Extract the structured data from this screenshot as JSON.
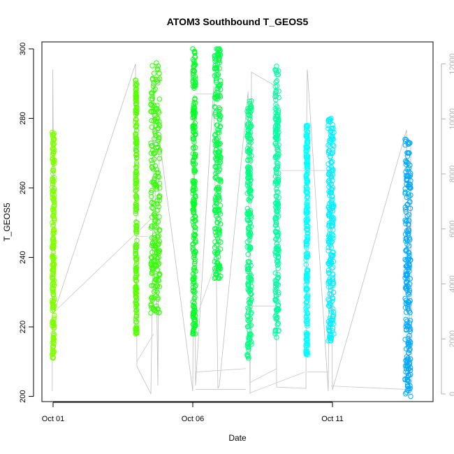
{
  "chart_data": {
    "type": "scatter",
    "title": "ATOM3 Southbound T_GEOS5",
    "xlabel": "Date",
    "ylabel": "T_GEOS5",
    "x_ticks": [
      "Oct 01",
      "Oct 06",
      "Oct 11"
    ],
    "x_tick_values": [
      1.0,
      6.0,
      11.0
    ],
    "xlim": [
      0.6,
      14.6
    ],
    "ylim": [
      198.5,
      302
    ],
    "y_ticks": [
      200,
      220,
      240,
      260,
      280,
      300
    ],
    "y2_ticks": [
      0,
      2000,
      4000,
      6000,
      8000,
      10000,
      12000
    ],
    "y2lim": [
      -280,
      12800
    ],
    "grid": false,
    "series": [
      {
        "values": [
          [
            0.97,
            212
          ],
          [
            0.97,
            276
          ],
          [
            1.0,
            211
          ],
          [
            1.0,
            270
          ],
          [
            1.02,
            252
          ],
          [
            1.02,
            230
          ],
          [
            1.05,
            268
          ],
          [
            1.05,
            240
          ]
        ],
        "color": "#7fff00"
      },
      {
        "values": [
          [
            3.95,
            218
          ],
          [
            3.95,
            291
          ],
          [
            4.0,
            250
          ],
          [
            4.0,
            264
          ],
          [
            4.0,
            235
          ]
        ],
        "color": "#55ff00"
      },
      {
        "values": [
          [
            4.5,
            224
          ],
          [
            4.5,
            282
          ],
          [
            4.6,
            225
          ],
          [
            4.6,
            288
          ],
          [
            4.7,
            226
          ],
          [
            4.7,
            296
          ],
          [
            4.75,
            228
          ],
          [
            4.75,
            294
          ],
          [
            4.78,
            240
          ],
          [
            4.82,
            260
          ]
        ],
        "color": "#33ff00"
      },
      {
        "values": [
          [
            6.0,
            218
          ],
          [
            6.0,
            300
          ],
          [
            6.05,
            222
          ],
          [
            6.05,
            296
          ],
          [
            6.1,
            232
          ],
          [
            6.1,
            290
          ],
          [
            6.02,
            260
          ]
        ],
        "color": "#00ff22"
      },
      {
        "values": [
          [
            6.78,
            234
          ],
          [
            6.78,
            298
          ],
          [
            6.85,
            235
          ],
          [
            6.85,
            300
          ],
          [
            6.95,
            234
          ],
          [
            6.95,
            300
          ],
          [
            7.0,
            262
          ]
        ],
        "color": "#00ff44"
      },
      {
        "values": [
          [
            7.95,
            212
          ],
          [
            7.95,
            282
          ],
          [
            8.0,
            211
          ],
          [
            8.0,
            280
          ],
          [
            8.1,
            215
          ],
          [
            8.1,
            285
          ],
          [
            8.05,
            250
          ]
        ],
        "color": "#00ff80"
      },
      {
        "values": [
          [
            8.95,
            218
          ],
          [
            8.95,
            294
          ],
          [
            9.0,
            217
          ],
          [
            9.0,
            295
          ],
          [
            9.08,
            219
          ],
          [
            9.08,
            286
          ],
          [
            9.02,
            255
          ]
        ],
        "color": "#00ffa0"
      },
      {
        "values": [
          [
            10.05,
            213
          ],
          [
            10.05,
            272
          ],
          [
            10.12,
            212
          ],
          [
            10.12,
            278
          ],
          [
            10.08,
            240
          ]
        ],
        "color": "#00ffff"
      },
      {
        "values": [
          [
            10.85,
            216
          ],
          [
            10.85,
            278
          ],
          [
            10.95,
            216
          ],
          [
            10.95,
            280
          ],
          [
            11.05,
            218
          ],
          [
            11.05,
            276
          ],
          [
            10.98,
            240
          ]
        ],
        "color": "#00f0ff"
      },
      {
        "values": [
          [
            13.6,
            205
          ],
          [
            13.6,
            274
          ],
          [
            13.7,
            203
          ],
          [
            13.7,
            270
          ],
          [
            13.8,
            200
          ],
          [
            13.8,
            260
          ],
          [
            13.75,
            230
          ]
        ],
        "color": "#00a8ff"
      }
    ],
    "altitude_series": {
      "color": "#bdbdbd",
      "values": [
        [
          0.97,
          100
        ],
        [
          0.99,
          11800
        ],
        [
          1.01,
          8700
        ],
        [
          1.05,
          3000
        ],
        [
          3.95,
          12000
        ],
        [
          4.0,
          1000
        ],
        [
          4.5,
          0
        ],
        [
          4.55,
          3300
        ],
        [
          4.6,
          11500
        ],
        [
          4.75,
          300
        ],
        [
          4.8,
          9300
        ],
        [
          6.0,
          100
        ],
        [
          6.05,
          10900
        ],
        [
          6.1,
          300
        ],
        [
          6.75,
          11200
        ],
        [
          6.9,
          200
        ],
        [
          6.95,
          300
        ],
        [
          7.98,
          11000
        ],
        [
          8.05,
          0
        ],
        [
          8.1,
          11700
        ],
        [
          8.95,
          11200
        ],
        [
          9.0,
          250
        ],
        [
          10.05,
          200
        ],
        [
          10.08,
          10400
        ],
        [
          10.1,
          11800
        ],
        [
          10.85,
          100
        ],
        [
          10.9,
          8800
        ],
        [
          11.0,
          150
        ],
        [
          13.65,
          9600
        ],
        [
          13.75,
          100
        ],
        [
          13.8,
          9200
        ],
        [
          13.85,
          0
        ]
      ]
    },
    "connector_lines": [
      [
        [
          1.0,
          224
        ],
        [
          4.5,
          251
        ]
      ],
      [
        [
          3.95,
          246
        ],
        [
          4.4,
          246
        ]
      ],
      [
        [
          4.0,
          210
        ],
        [
          4.6,
          218
        ]
      ],
      [
        [
          6.05,
          221
        ],
        [
          6.9,
          240
        ]
      ],
      [
        [
          6.1,
          207
        ],
        [
          7.9,
          208
        ]
      ],
      [
        [
          6.1,
          287
        ],
        [
          6.75,
          287
        ]
      ],
      [
        [
          8.05,
          204
        ],
        [
          9.0,
          208
        ]
      ],
      [
        [
          8.0,
          226
        ],
        [
          9.0,
          226
        ]
      ],
      [
        [
          9.0,
          265
        ],
        [
          10.05,
          265
        ]
      ],
      [
        [
          10.05,
          265
        ],
        [
          10.85,
          265
        ]
      ],
      [
        [
          10.1,
          207
        ],
        [
          10.85,
          207
        ]
      ],
      [
        [
          10.95,
          203
        ],
        [
          13.65,
          202
        ]
      ],
      [
        [
          8.05,
          201
        ],
        [
          10.0,
          207
        ]
      ],
      [
        [
          6.1,
          202
        ],
        [
          7.9,
          202
        ]
      ]
    ]
  }
}
